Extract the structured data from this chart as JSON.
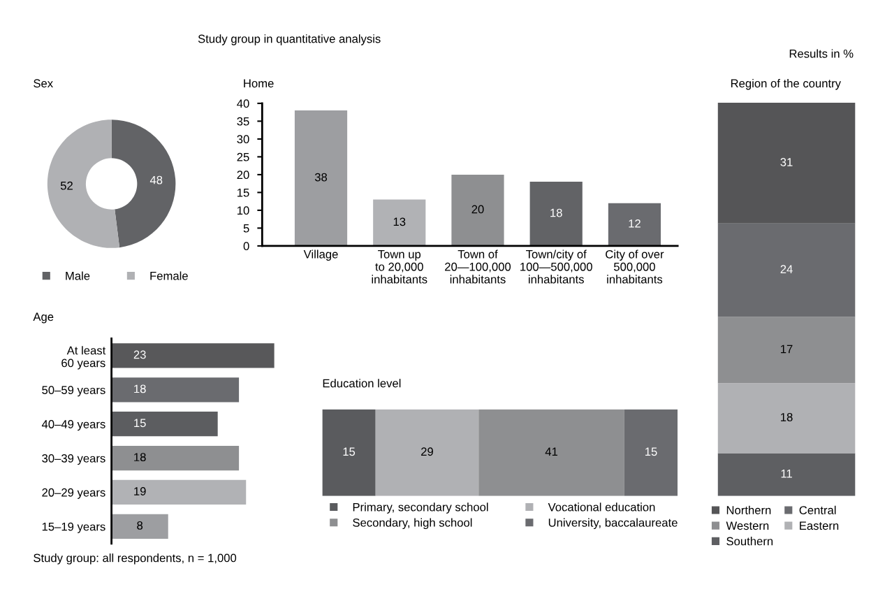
{
  "chart_data": [
    {
      "type": "donut",
      "title": "Sex",
      "categories": [
        "Male",
        "Female"
      ],
      "values": [
        48,
        52
      ],
      "colors": [
        "#626366",
        "#b0b1b4"
      ],
      "data_labels": true,
      "legend": "bottom"
    },
    {
      "type": "bar",
      "title": "Home",
      "annotations": [
        "Study group in quantitative analysis"
      ],
      "categories": [
        "Village",
        "Town up\nto 20,000\ninhabitants",
        "Town of\n20—100,000\ninhabitants",
        "Town/city of\n100—500,000\ninhabitants",
        "City of over\n500,000\ninhabitants"
      ],
      "values": [
        38,
        13,
        20,
        18,
        12
      ],
      "colors": [
        "#9d9ea1",
        "#b1b2b5",
        "#8e8f91",
        "#626366",
        "#6a6b6f"
      ],
      "ylim": [
        0,
        40
      ],
      "yticks": [
        0,
        5,
        10,
        15,
        20,
        25,
        30,
        35,
        40
      ],
      "data_labels": true
    },
    {
      "type": "bar",
      "title": "Age",
      "annotations": [
        "Study group: all respondents, n = 1,000"
      ],
      "orientation": "horizontal",
      "categories": [
        "At least\n60 years",
        "50–59 years",
        "40–49 years",
        "30–39 years",
        "20–29 years",
        "15–19 years"
      ],
      "values": [
        23,
        18,
        15,
        18,
        19,
        8
      ],
      "colors": [
        "#58585a",
        "#6a6b6f",
        "#5c5d60",
        "#8e8f91",
        "#b1b2b5",
        "#9d9ea1"
      ],
      "data_labels": true,
      "tick_labels": "y"
    },
    {
      "type": "bar",
      "title": "Education level",
      "orientation": "horizontal",
      "stacked": true,
      "categories": [
        null
      ],
      "series": [
        {
          "name": "Primary, secondary school",
          "color": "#5a5b5e",
          "values": [
            15
          ]
        },
        {
          "name": "Vocational education",
          "color": "#b0b1b4",
          "values": [
            29
          ]
        },
        {
          "name": "Secondary, high school",
          "color": "#8e8f91",
          "values": [
            41
          ]
        },
        {
          "name": "University, baccalaureate",
          "color": "#6a6b6f",
          "values": [
            15
          ]
        }
      ],
      "data_labels": true,
      "legend": "bottom",
      "tick_labels": false
    },
    {
      "type": "bar",
      "title": "Region of the country",
      "annotations": [
        "Results in %"
      ],
      "stacked": true,
      "categories": [
        null
      ],
      "series": [
        {
          "name": "Southern",
          "color": "#5e5f62",
          "values": [
            11
          ]
        },
        {
          "name": "Eastern",
          "color": "#b0b1b4",
          "values": [
            18
          ]
        },
        {
          "name": "Western",
          "color": "#8e8f91",
          "values": [
            17
          ]
        },
        {
          "name": "Central",
          "color": "#6a6b6f",
          "values": [
            24
          ]
        },
        {
          "name": "Northern",
          "color": "#555557",
          "values": [
            31
          ]
        }
      ],
      "data_labels": true,
      "legend": "bottom",
      "tick_labels": false
    }
  ]
}
